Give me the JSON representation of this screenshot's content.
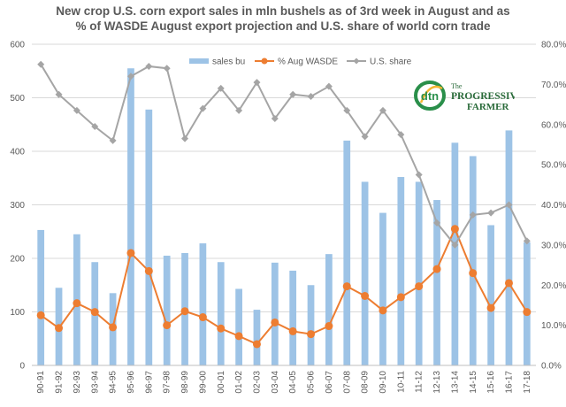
{
  "chart_data": {
    "type": "bar+line",
    "title_line1": "New crop U.S. corn export sales in mln bushels as of 3rd week in August and as",
    "title_line2": "%  of WASDE  August export projection and U.S. share of world corn trade",
    "categories": [
      "90-91",
      "91-92",
      "92-93",
      "93-94",
      "94-95",
      "95-96",
      "96-97",
      "97-98",
      "98-99",
      "99-00",
      "00-01",
      "01-02",
      "02-03",
      "03-04",
      "04-05",
      "05-06",
      "06-07",
      "07-08",
      "08-09",
      "09-10",
      "10-11",
      "11-12",
      "12-13",
      "13-14",
      "14-15",
      "15-16",
      "16-17",
      "17-18"
    ],
    "series": [
      {
        "name": "sales bu",
        "kind": "bar",
        "axis": "left",
        "color": "#9dc3e6",
        "values": [
          253,
          145,
          245,
          193,
          135,
          555,
          478,
          205,
          210,
          228,
          193,
          143,
          104,
          192,
          177,
          150,
          208,
          420,
          343,
          285,
          352,
          343,
          309,
          416,
          391,
          262,
          439,
          230
        ]
      },
      {
        "name": "% Aug WASDE",
        "kind": "line",
        "axis": "right",
        "color": "#ed7d31",
        "values": [
          12.5,
          9.3,
          15.5,
          13.3,
          9.5,
          28.0,
          23.5,
          10.0,
          13.5,
          12.0,
          9.2,
          7.3,
          5.3,
          10.7,
          8.5,
          7.8,
          9.8,
          19.7,
          17.3,
          13.7,
          17.0,
          19.7,
          24.0,
          34.0,
          23.0,
          14.3,
          20.5,
          13.3
        ]
      },
      {
        "name": "U.S. share",
        "kind": "line",
        "axis": "right",
        "color": "#a5a5a5",
        "values": [
          75.0,
          67.5,
          63.5,
          59.5,
          56.0,
          72.0,
          74.5,
          74.0,
          56.5,
          64.0,
          69.0,
          63.5,
          70.5,
          61.5,
          67.5,
          67.0,
          69.5,
          63.5,
          57.0,
          63.5,
          57.5,
          47.5,
          35.5,
          30.0,
          37.5,
          38.0,
          40.0,
          31.0
        ]
      }
    ],
    "y_left": {
      "min": 0,
      "max": 600,
      "step": 100,
      "ticks": [
        "0",
        "100",
        "200",
        "300",
        "400",
        "500",
        "600"
      ]
    },
    "y_right": {
      "min": 0,
      "max": 80,
      "step": 10,
      "ticks": [
        "0.0%",
        "10.0%",
        "20.0%",
        "30.0%",
        "40.0%",
        "50.0%",
        "60.0%",
        "70.0%",
        "80.0%"
      ]
    },
    "grid": true,
    "legend_position": "top"
  },
  "logo": {
    "left": "dtn",
    "right_top": "The",
    "right_main": "PROGRESSIVE",
    "right_sub": "FARMER"
  }
}
